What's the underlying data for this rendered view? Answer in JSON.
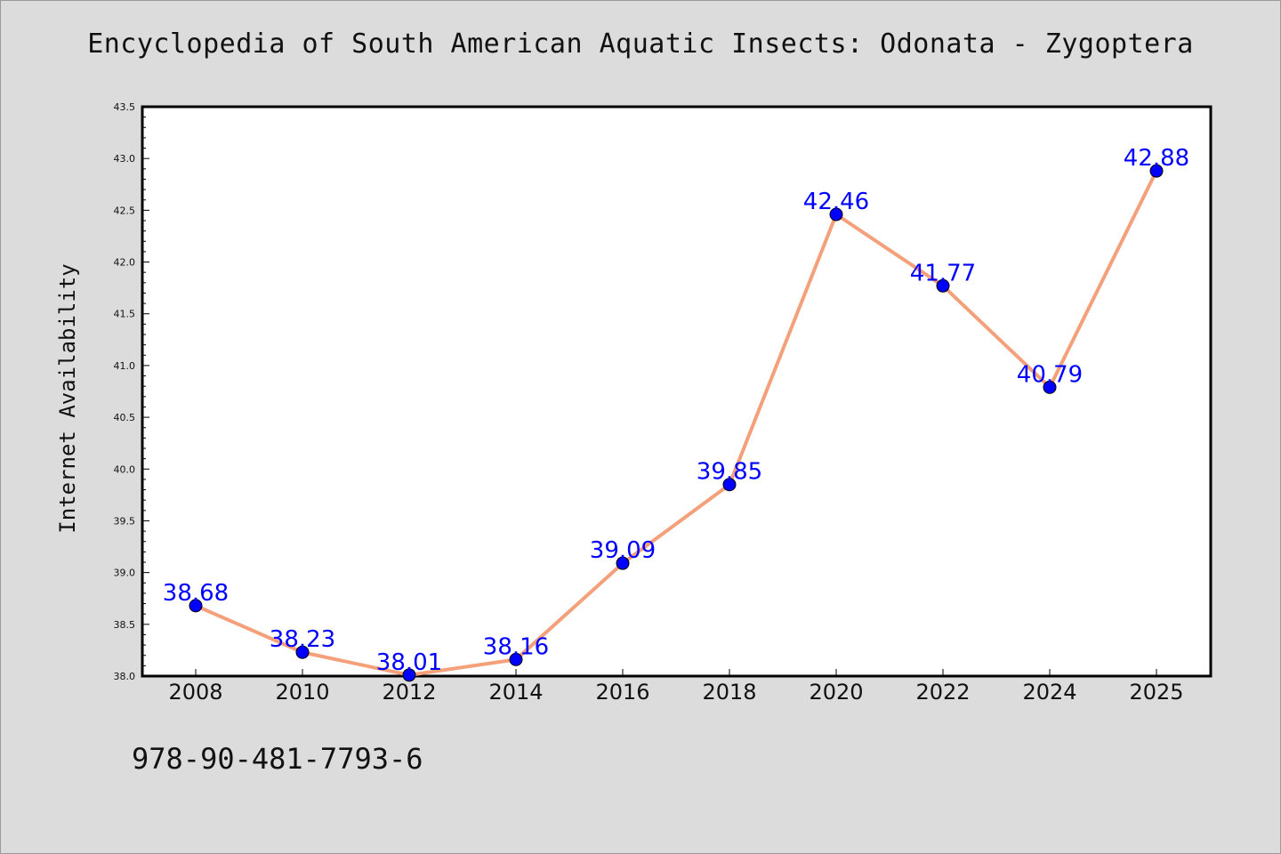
{
  "title": "Encyclopedia of South American Aquatic Insects: Odonata - Zygoptera",
  "isbn": "978-90-481-7793-6",
  "colors": {
    "background": "#dcdcdc",
    "plot_area": "#ffffff",
    "line": "#f4a07a",
    "marker": "#0000ff",
    "data_label": "#0000ff"
  },
  "chart_data": {
    "type": "line",
    "title": "Encyclopedia of South American Aquatic Insects: Odonata - Zygoptera",
    "xlabel": "",
    "ylabel": "Internet Availability",
    "categories": [
      "2008",
      "2010",
      "2012",
      "2014",
      "2016",
      "2018",
      "2020",
      "2022",
      "2024",
      "2025"
    ],
    "series": [
      {
        "values": [
          38.68,
          38.23,
          38.01,
          38.16,
          39.09,
          39.85,
          42.46,
          41.77,
          40.79,
          42.88
        ]
      }
    ],
    "data_labels": [
      "38.68",
      "38.23",
      "38.01",
      "38.16",
      "39.09",
      "39.85",
      "42.46",
      "41.77",
      "40.79",
      "42.88"
    ],
    "ylim": [
      38.0,
      43.5
    ],
    "yticks": [
      38.0,
      38.5,
      39.0,
      39.5,
      40.0,
      40.5,
      41.0,
      41.5,
      42.0,
      42.5,
      43.0,
      43.5
    ],
    "ytick_labels": [
      "38.0",
      "38.5",
      "39.0",
      "39.5",
      "40.0",
      "40.5",
      "41.0",
      "41.5",
      "42.0",
      "42.5",
      "43.0",
      "43.5"
    ],
    "grid": false,
    "legend": false
  }
}
